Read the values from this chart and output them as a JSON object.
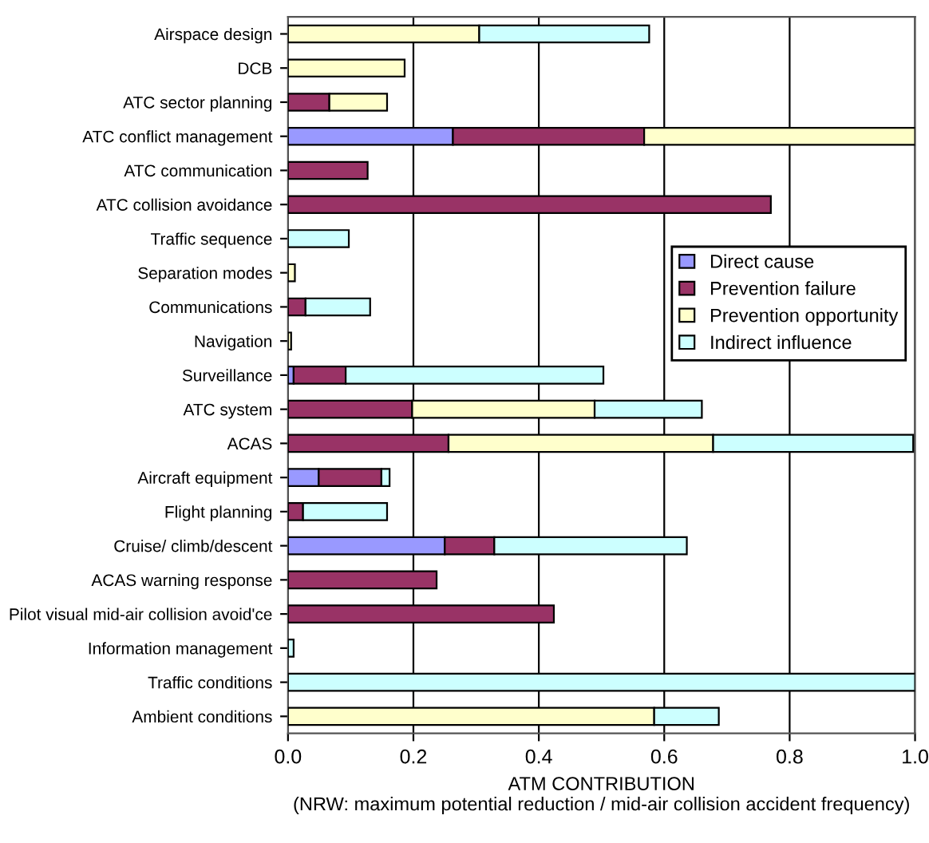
{
  "chart_data": {
    "type": "bar",
    "orientation": "horizontal",
    "stacked": true,
    "xlabel": "ATM CONTRIBUTION\n(NRW: maximum potential reduction / mid-air collision accident frequency)",
    "categories": [
      "Airspace design",
      "DCB",
      "ATC sector planning",
      "ATC conflict management",
      "ATC communication",
      "ATC collision avoidance",
      "Traffic sequence",
      "Separation modes",
      "Communications",
      "Navigation",
      "Surveillance",
      "ATC system",
      "ACAS",
      "Aircraft equipment",
      "Flight planning",
      "Cruise/ climb/descent",
      "ACAS warning response",
      "Pilot visual mid-air collision avoid'ce",
      "Information management",
      "Traffic conditions",
      "Ambient conditions"
    ],
    "series": [
      {
        "name": "Direct cause",
        "color": "#9999ff",
        "values": [
          0,
          0,
          0,
          0.263,
          0,
          0,
          0,
          0,
          0,
          0,
          0.009,
          0,
          null,
          0.049,
          0,
          0.25,
          0,
          0,
          0,
          0,
          0
        ]
      },
      {
        "name": "Prevention failure",
        "color": "#993366",
        "values": [
          0,
          0,
          0.066,
          0.305,
          0.127,
          0.77,
          0,
          0,
          0.028,
          0,
          0.083,
          0.198,
          0.256,
          0.1,
          0.024,
          0.079,
          0.237,
          0.424,
          0,
          0,
          0
        ]
      },
      {
        "name": "Prevention opportunity",
        "color": "#ffffcc",
        "values": [
          0.305,
          0.186,
          0.092,
          0.432,
          0,
          0,
          0,
          0.011,
          0,
          0.005,
          0,
          0.291,
          0.422,
          0,
          0,
          0,
          0,
          0,
          0,
          0,
          0.584
        ]
      },
      {
        "name": "Indirect influence",
        "color": "#ccffff",
        "values": [
          0.271,
          0,
          0,
          0,
          0,
          0,
          0.097,
          0,
          0.103,
          0,
          0.411,
          0.171,
          0.319,
          0.013,
          0.134,
          0.307,
          0,
          0,
          0.009,
          1.0,
          0.103
        ]
      }
    ],
    "xlim": [
      0,
      1
    ],
    "xticks": [
      {
        "value": 0,
        "label": "0.0"
      },
      0.2,
      0.4,
      0.6,
      0.8,
      {
        "value": 1,
        "label": "1.0"
      }
    ],
    "grid": "x",
    "legend": "right"
  }
}
